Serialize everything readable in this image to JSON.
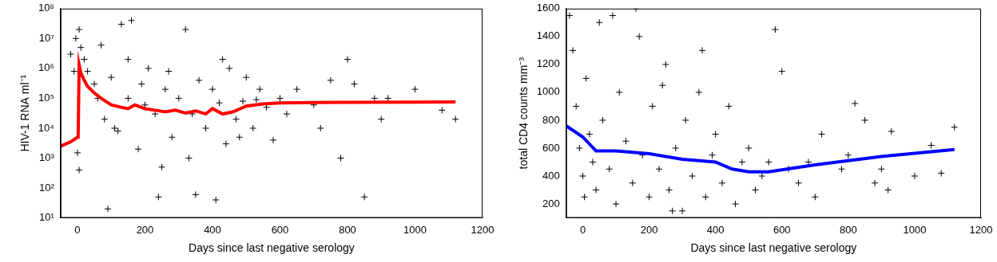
{
  "chart_data": [
    {
      "type": "scatter",
      "x_label": "Days since last negative serology",
      "y_label": "HIV-1 RNA ml⁻¹",
      "log": "y",
      "grid": false,
      "xlim": [
        -50,
        1200
      ],
      "xticks": [
        0,
        200,
        400,
        600,
        800,
        1000,
        1200
      ],
      "ylim": [
        10,
        100000000.0
      ],
      "yticks": [
        {
          "value": 10,
          "label": "10¹"
        },
        {
          "value": 100,
          "label": "10²"
        },
        {
          "value": 1000,
          "label": "10³"
        },
        {
          "value": 10000,
          "label": "10⁴"
        },
        {
          "value": 100000,
          "label": "10⁵"
        },
        {
          "value": 1000000,
          "label": "10⁶"
        },
        {
          "value": 10000000,
          "label": "10⁷"
        },
        {
          "value": 100000000,
          "label": "10⁸"
        }
      ],
      "series": [
        {
          "type": "scatter",
          "color": "#000000",
          "marker": "cross",
          "x": [
            -20,
            -5,
            5,
            10,
            -10,
            0,
            5,
            20,
            30,
            50,
            60,
            80,
            100,
            120,
            130,
            150,
            160,
            180,
            200,
            210,
            230,
            250,
            260,
            280,
            300,
            320,
            340,
            350,
            360,
            380,
            400,
            410,
            420,
            440,
            450,
            470,
            490,
            500,
            520,
            540,
            560,
            580,
            600,
            620,
            650,
            700,
            720,
            750,
            780,
            800,
            820,
            850,
            880,
            900,
            920,
            1000,
            1080,
            1120,
            90,
            240,
            330,
            150,
            70,
            110,
            190,
            270,
            430,
            480,
            530
          ],
          "values": [
            3000000.0,
            10000000.0,
            20000000.0,
            5000000.0,
            800000.0,
            1500,
            400,
            2000000.0,
            800000.0,
            300000.0,
            100000.0,
            20000.0,
            500000.0,
            8000.0,
            30000000.0,
            100000.0,
            40000000.0,
            2000.0,
            60000.0,
            1000000.0,
            30000.0,
            500,
            200000.0,
            5000.0,
            100000.0,
            20000000.0,
            30000.0,
            60,
            400000.0,
            10000.0,
            200000.0,
            40,
            70000.0,
            3000.0,
            1000000.0,
            20000.0,
            80000.0,
            500000.0,
            10000.0,
            200000.0,
            50000.0,
            4000.0,
            100000.0,
            30000.0,
            200000.0,
            60000.0,
            10000.0,
            400000.0,
            1000.0,
            2000000.0,
            300000.0,
            50,
            100000.0,
            20000.0,
            100000.0,
            200000.0,
            40000.0,
            20000.0,
            20,
            50,
            1000.0,
            2000000.0,
            6000000.0,
            10000.0,
            300000.0,
            800000.0,
            2000000.0,
            5000.0,
            90000.0
          ]
        },
        {
          "type": "line",
          "color": "#ff0000",
          "marker": "none",
          "line_style": "solid",
          "x": [
            -50,
            -20,
            0,
            2,
            5,
            10,
            20,
            30,
            50,
            70,
            100,
            130,
            150,
            170,
            200,
            230,
            260,
            290,
            320,
            350,
            380,
            400,
            430,
            460,
            500,
            550,
            600,
            700,
            800,
            1000,
            1120
          ],
          "values": [
            2500,
            3500,
            5000,
            5000,
            1300000,
            700000,
            400000,
            250000,
            150000,
            100000,
            60000,
            50000,
            45000,
            60000,
            45000,
            40000,
            35000,
            40000,
            32000,
            38000,
            30000,
            45000,
            30000,
            35000,
            55000,
            65000,
            70000,
            72000,
            73000,
            74000,
            75000
          ]
        }
      ]
    },
    {
      "type": "scatter",
      "x_label": "Days since last negative serology",
      "y_label": "total CD4 counts mm⁻³",
      "grid": false,
      "xlim": [
        -50,
        1200
      ],
      "xticks": [
        0,
        200,
        400,
        600,
        800,
        1000,
        1200
      ],
      "ylim": [
        100,
        1600
      ],
      "yticks": [
        200,
        400,
        600,
        800,
        1000,
        1200,
        1400,
        1600
      ],
      "series": [
        {
          "type": "scatter",
          "color": "#000000",
          "marker": "cross",
          "x": [
            -40,
            -30,
            -20,
            -10,
            0,
            5,
            10,
            20,
            30,
            40,
            50,
            60,
            80,
            100,
            110,
            130,
            150,
            170,
            180,
            200,
            210,
            230,
            250,
            260,
            280,
            300,
            310,
            330,
            350,
            370,
            390,
            400,
            420,
            440,
            460,
            480,
            500,
            520,
            540,
            560,
            580,
            600,
            620,
            650,
            680,
            700,
            720,
            780,
            800,
            820,
            850,
            880,
            900,
            920,
            930,
            1000,
            1050,
            1120,
            1080,
            90,
            160,
            240,
            270,
            360
          ],
          "values": [
            1550,
            1300,
            900,
            600,
            400,
            250,
            1100,
            700,
            500,
            300,
            1500,
            800,
            450,
            200,
            1000,
            650,
            350,
            1400,
            550,
            250,
            900,
            450,
            1200,
            300,
            600,
            150,
            800,
            400,
            1000,
            250,
            550,
            700,
            350,
            900,
            200,
            500,
            600,
            300,
            400,
            500,
            1450,
            1150,
            450,
            350,
            500,
            250,
            700,
            450,
            550,
            920,
            800,
            350,
            450,
            300,
            720,
            400,
            620,
            750,
            420,
            1550,
            1600,
            1050,
            150,
            1300
          ]
        },
        {
          "type": "line",
          "color": "#0000ff",
          "marker": "none",
          "line_style": "solid",
          "x": [
            -50,
            0,
            40,
            100,
            200,
            300,
            400,
            450,
            500,
            560,
            700,
            900,
            1120
          ],
          "values": [
            760,
            680,
            580,
            580,
            560,
            520,
            500,
            450,
            430,
            430,
            480,
            540,
            590
          ]
        }
      ]
    }
  ]
}
